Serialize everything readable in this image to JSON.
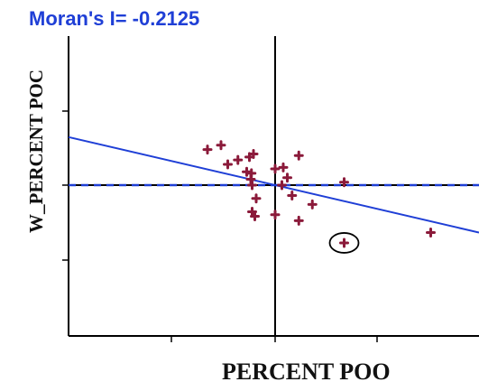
{
  "chart_data": {
    "type": "scatter",
    "title": "Moran's I= -0.2125",
    "xlabel": "PERCENT POO",
    "ylabel": "W_PERCENT POC",
    "xlim": [
      -3.0,
      3.0
    ],
    "ylim": [
      -2.0,
      2.0
    ],
    "grid": false,
    "regression": {
      "slope": -0.2125,
      "intercept": 0.0,
      "color": "#1f3fd6"
    },
    "reference_line": {
      "y": 0.0,
      "style": "dashed",
      "color": "#1f3fd6"
    },
    "colors": {
      "points": "#8b1a3a",
      "axes": "#000000",
      "title": "#1f3fd6"
    },
    "points": [
      {
        "x": -1.0,
        "y": 0.48
      },
      {
        "x": -0.8,
        "y": 0.54
      },
      {
        "x": -0.7,
        "y": 0.28
      },
      {
        "x": -0.55,
        "y": 0.34
      },
      {
        "x": -0.42,
        "y": 0.18
      },
      {
        "x": -0.38,
        "y": 0.38
      },
      {
        "x": -0.35,
        "y": 0.16
      },
      {
        "x": -0.32,
        "y": 0.42
      },
      {
        "x": -0.36,
        "y": 0.08
      },
      {
        "x": -0.34,
        "y": 0.0
      },
      {
        "x": -0.34,
        "y": -0.36
      },
      {
        "x": -0.3,
        "y": -0.42
      },
      {
        "x": -0.28,
        "y": -0.18
      },
      {
        "x": 0.0,
        "y": 0.22
      },
      {
        "x": 0.1,
        "y": 0.0
      },
      {
        "x": 0.12,
        "y": 0.24
      },
      {
        "x": 0.18,
        "y": 0.1
      },
      {
        "x": 0.25,
        "y": -0.14
      },
      {
        "x": 0.35,
        "y": 0.4
      },
      {
        "x": 0.35,
        "y": -0.48
      },
      {
        "x": 0.55,
        "y": -0.26
      },
      {
        "x": 1.02,
        "y": 0.04
      },
      {
        "x": 1.02,
        "y": -0.78
      },
      {
        "x": 2.3,
        "y": -0.64
      },
      {
        "x": 0.0,
        "y": -0.4
      }
    ],
    "highlighted_point_index": 22
  }
}
